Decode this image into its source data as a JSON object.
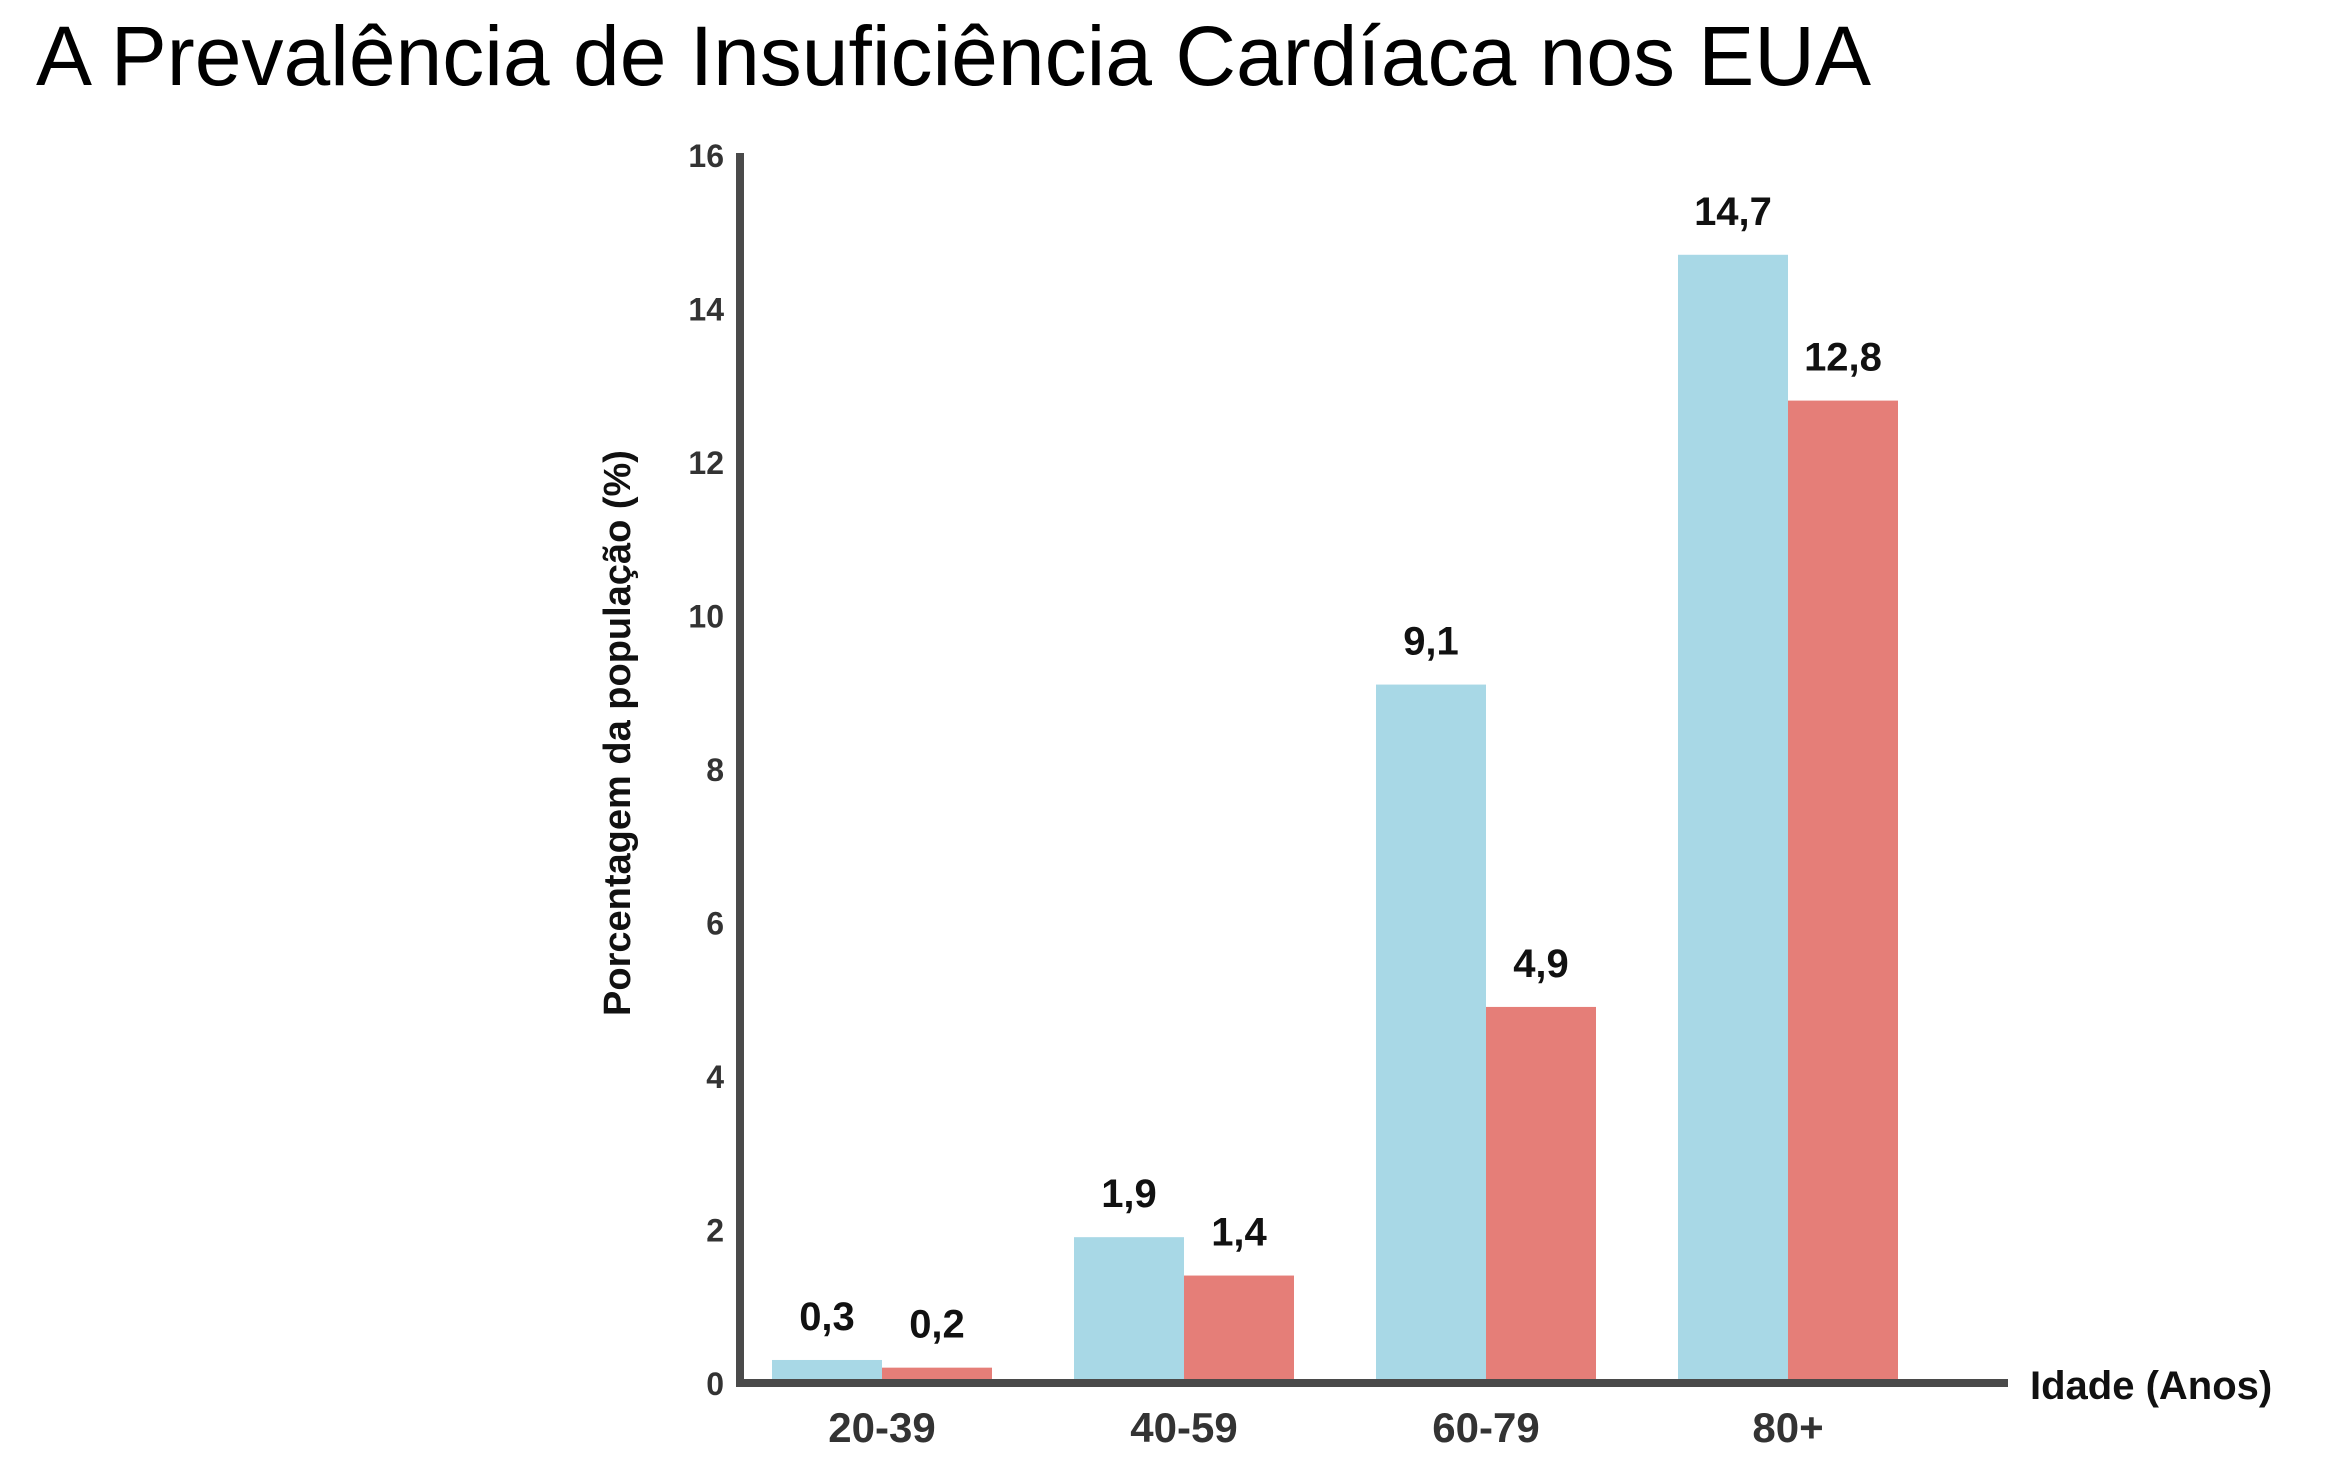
{
  "title": "A Prevalência de Insuficiência Cardíaca nos EUA",
  "colors": {
    "series_1": "#a8d8e6",
    "series_2": "#e57e78",
    "axis": "#4a4a4a"
  },
  "chart_data": {
    "type": "bar",
    "title": "A Prevalência de Insuficiência Cardíaca nos EUA",
    "xlabel": "Idade (Anos)",
    "ylabel": "Porcentagem da população (%)",
    "ylim": [
      0,
      16
    ],
    "yticks": [
      "0",
      "2",
      "4",
      "6",
      "8",
      "10",
      "12",
      "14",
      "16"
    ],
    "categories": [
      "20-39",
      "40-59",
      "60-79",
      "80+"
    ],
    "series": [
      {
        "values": [
          0.3,
          1.9,
          9.1,
          14.7
        ],
        "labels": [
          "0,3",
          "1,9",
          "9,1",
          "14,7"
        ]
      },
      {
        "values": [
          0.2,
          1.4,
          4.9,
          12.8
        ],
        "labels": [
          "0,2",
          "1,4",
          "4,9",
          "12,8"
        ]
      }
    ],
    "grid": false,
    "legend": "none"
  }
}
